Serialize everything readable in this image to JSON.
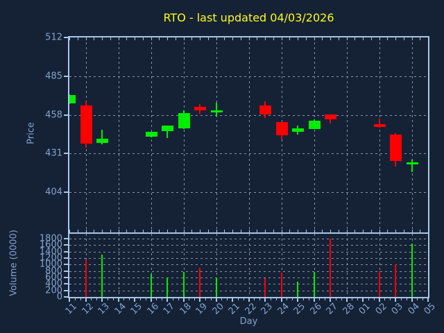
{
  "colors": {
    "background": "#152236",
    "up": "#00ee00",
    "down": "#ff0000",
    "spine": "#a9c7e8",
    "grid": "#8495a9",
    "tick_label": "#85a3cc",
    "title_text": "#fdfd13"
  },
  "chart_data": {
    "type": "candlestick",
    "title": "RTO - last updated 04/03/2026",
    "xlabel": "Day",
    "x_categories": [
      "11",
      "12",
      "13",
      "14",
      "15",
      "16",
      "17",
      "18",
      "19",
      "20",
      "21",
      "22",
      "23",
      "24",
      "25",
      "26",
      "27",
      "28",
      "01",
      "02",
      "03",
      "04",
      "05"
    ],
    "grid": {
      "style": "dashed",
      "vertical_every_n_days": 2,
      "horizontal": "at_axis_ticks"
    },
    "legend": "none",
    "price_axis": {
      "label": "Price",
      "ticks": [
        512,
        485,
        458,
        431,
        404
      ],
      "ylim": [
        375.9,
        512.2
      ]
    },
    "volume_axis": {
      "label": "Volume (0000)",
      "ticks": [
        1800,
        1600,
        1400,
        1200,
        1000,
        800,
        600,
        400,
        200,
        0
      ],
      "ylim": [
        0,
        1950
      ]
    },
    "candles": [
      {
        "day": "11",
        "open": 466,
        "high": 472.5,
        "low": 465.5,
        "close": 472,
        "volume": 0
      },
      {
        "day": "12",
        "open": 464.5,
        "high": 467.5,
        "low": 435,
        "close": 438,
        "volume": 1150
      },
      {
        "day": "13",
        "open": 438.5,
        "high": 447.5,
        "low": 437.5,
        "close": 441.5,
        "volume": 1300
      },
      {
        "day": "16",
        "open": 443,
        "high": 446,
        "low": 442.5,
        "close": 446,
        "volume": 700
      },
      {
        "day": "17",
        "open": 446.5,
        "high": 450.5,
        "low": 442,
        "close": 450.5,
        "volume": 600
      },
      {
        "day": "18",
        "open": 448.5,
        "high": 461.5,
        "low": 448,
        "close": 459.5,
        "volume": 775
      },
      {
        "day": "19",
        "open": 463.5,
        "high": 465.5,
        "low": 459,
        "close": 461.5,
        "volume": 900
      },
      {
        "day": "20",
        "open": 460,
        "high": 466.5,
        "low": 457,
        "close": 461.5,
        "volume": 600
      },
      {
        "day": "23",
        "open": 464.5,
        "high": 467.5,
        "low": 456,
        "close": 458.5,
        "volume": 575
      },
      {
        "day": "24",
        "open": 453,
        "high": 453,
        "low": 441,
        "close": 444,
        "volume": 750
      },
      {
        "day": "25",
        "open": 446,
        "high": 450.5,
        "low": 444.5,
        "close": 448.5,
        "volume": 475
      },
      {
        "day": "26",
        "open": 448,
        "high": 455,
        "low": 448,
        "close": 454,
        "volume": 775
      },
      {
        "day": "27",
        "open": 458.5,
        "high": 458.5,
        "low": 452,
        "close": 455,
        "volume": 1800
      },
      {
        "day": "02",
        "open": 451.5,
        "high": 455.5,
        "low": 449,
        "close": 449.5,
        "volume": 800
      },
      {
        "day": "03",
        "open": 444.5,
        "high": 445.5,
        "low": 422,
        "close": 426,
        "volume": 1000
      },
      {
        "day": "04",
        "open": 423.5,
        "high": 427,
        "low": 418,
        "close": 425,
        "volume": 1650
      }
    ]
  }
}
